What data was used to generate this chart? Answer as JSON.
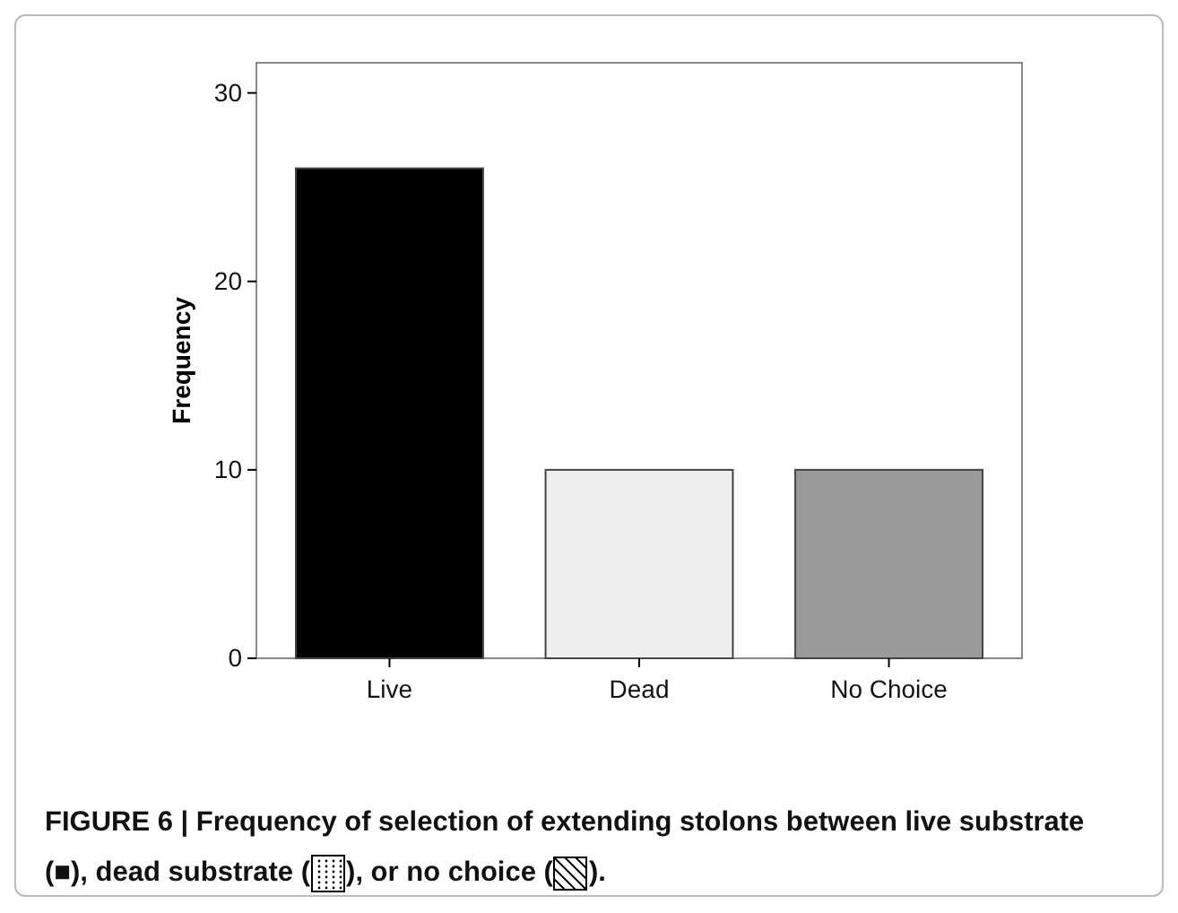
{
  "chart_data": {
    "type": "bar",
    "ylabel": "Frequency",
    "categories": [
      "Live",
      "Dead",
      "No Choice"
    ],
    "values": [
      26,
      10,
      10
    ],
    "colors": [
      "#000000",
      "#eeeeee",
      "#9a9a9a"
    ],
    "ylim": [
      0,
      31.6
    ],
    "yticks": [
      0,
      10,
      20,
      30
    ],
    "grid": false,
    "annotations": [
      "FIGURE 6 | Frequency of selection of extending stolons between live substrate (■), dead substrate (",
      "), or no choice (",
      "). "
    ]
  }
}
